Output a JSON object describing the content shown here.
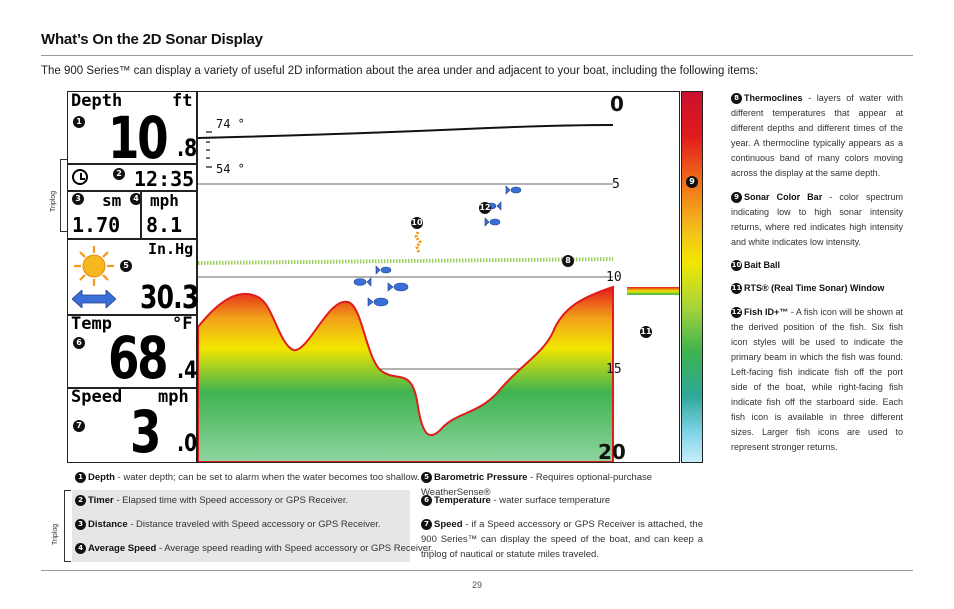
{
  "header": {
    "title": "What’s On the 2D Sonar Display",
    "intro": "The 900 Series™ can display a variety of useful 2D information about the area under and adjacent to your boat, including the following items:"
  },
  "screen": {
    "depth_label": "Depth",
    "depth_unit": "ft",
    "depth_int": "10",
    "depth_dec": ".8",
    "time": "12:35",
    "distance_unit": "sm",
    "speed_unit_small": "mph",
    "distance_value": "1.70",
    "avg_speed_value": "8.1",
    "baro_unit": "In.Hg",
    "baro_value": "30.3",
    "temp_label": "Temp",
    "temp_unit": "°F",
    "temp_int": "68",
    "temp_dec": ".4",
    "speed_label": "Speed",
    "speed_unit": "mph",
    "speed_int": "3",
    "speed_dec": ".0",
    "scale_top": "0",
    "scale_5": "5",
    "scale_10": "10",
    "scale_15": "15",
    "scale_bottom": "20",
    "temp_74": "74 °",
    "temp_54": "54 °",
    "triplog_label": "Triplog"
  },
  "callouts": {
    "c1": "1",
    "c2": "2",
    "c3": "3",
    "c4": "4",
    "c5": "5",
    "c6": "6",
    "c7": "7",
    "c8": "8",
    "c9": "9",
    "c10": "10",
    "c11": "11",
    "c12": "12"
  },
  "descriptions": [
    {
      "num": "8",
      "key": "Thermoclines",
      "text": " - layers of water with different temperatures that appear at different depths and different times of the year. A thermocline typically appears as a continuous band of many colors moving across the display at the same depth."
    },
    {
      "num": "9",
      "key": "Sonar Color Bar",
      "text": " - color spectrum indicating low to high sonar intensity returns, where red indicates high intensity and white indicates low intensity."
    },
    {
      "num": "10",
      "key": "Bait Ball",
      "text": ""
    },
    {
      "num": "11",
      "key": "RTS® (Real Time Sonar) Window",
      "text": ""
    },
    {
      "num": "12",
      "key": "Fish ID+™",
      "text": " - A fish icon will be shown at the derived position of the fish. Six fish icon styles will be used to indicate the primary beam in which the fish was found. Left-facing fish indicate fish off the port side of the boat, while right-facing fish indicate fish off the starboard side. Each fish icon is available in three different sizes. Larger fish icons are used to represent stronger returns."
    }
  ],
  "legend": [
    {
      "num": "1",
      "key": "Depth",
      "text": " - water depth; can be set to alarm when the water becomes too shallow."
    },
    {
      "num": "2",
      "key": "Timer",
      "text": " - Elapsed time with Speed accessory or GPS Receiver."
    },
    {
      "num": "3",
      "key": "Distance",
      "text": " - Distance traveled with Speed accessory or GPS Receiver."
    },
    {
      "num": "4",
      "key": "Average Speed",
      "text": " - Average speed reading with Speed accessory or GPS Receiver."
    },
    {
      "num": "5",
      "key": "Barometric Pressure",
      "text": " - Requires optional-purchase WeatherSense®"
    },
    {
      "num": "6",
      "key": "Temperature",
      "text": " - water surface temperature"
    },
    {
      "num": "7",
      "key": "Speed",
      "text": " - if a Speed accessory or GPS Receiver is attached, the 900 Series™ can display the speed of the boat, and can keep a triplog of nautical or statute miles traveled."
    }
  ],
  "footer": {
    "page_number": "29"
  },
  "colors": {
    "accent_red": "#e21b1b",
    "accent_yellow": "#f2e600",
    "accent_green": "#3fb34f",
    "accent_blue": "#3a6fd8"
  }
}
